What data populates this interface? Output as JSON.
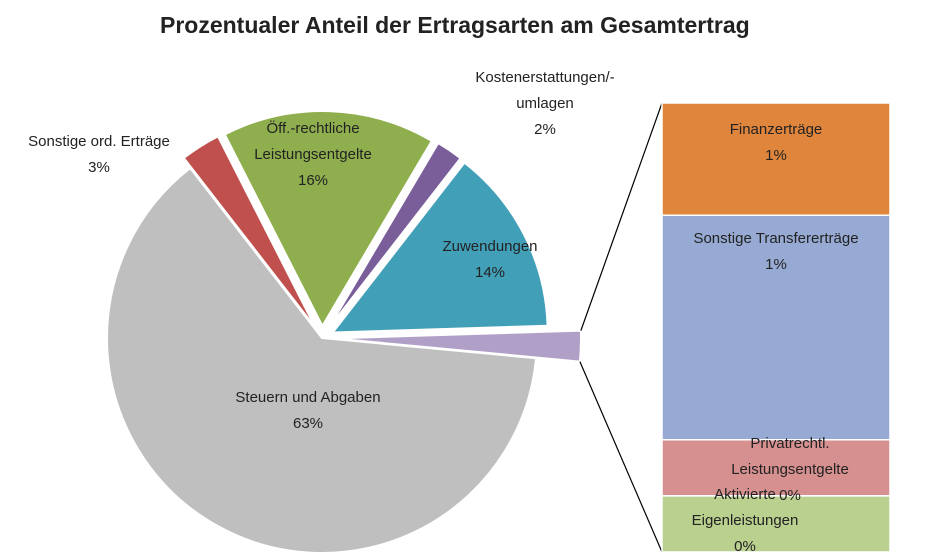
{
  "chart_data": {
    "type": "pie-of-bar",
    "title": "Prozentualer Anteil der Ertragsarten am Gesamtertrag",
    "categories": [
      "Steuern und Abgaben",
      "Sonstige ord. Erträge",
      "Öff.-rechtliche Leistungsentgelte",
      "Kostenerstattungen/-umlagen",
      "Zuwendungen"
    ],
    "values": [
      63,
      3,
      16,
      2,
      14
    ],
    "value_labels": [
      "63%",
      "3%",
      "16%",
      "2%",
      "14%"
    ],
    "colors": [
      "#bfbfbf",
      "#c0504d",
      "#8faf4e",
      "#7a5e99",
      "#429fb8"
    ],
    "other_color": "#b0a0c8",
    "bar": {
      "categories": [
        "Finanzerträge",
        "Sonstige Transfererträge",
        "Privatrechtl. Leistungsentgelte",
        "Aktivierte Eigenleistungen"
      ],
      "values": [
        0.5,
        1.0,
        0.25,
        0.25
      ],
      "value_labels": [
        "1%",
        "1%",
        "0%",
        "0%"
      ],
      "colors": [
        "#e0853c",
        "#96aad3",
        "#d6908f",
        "#b9d08f"
      ]
    }
  }
}
